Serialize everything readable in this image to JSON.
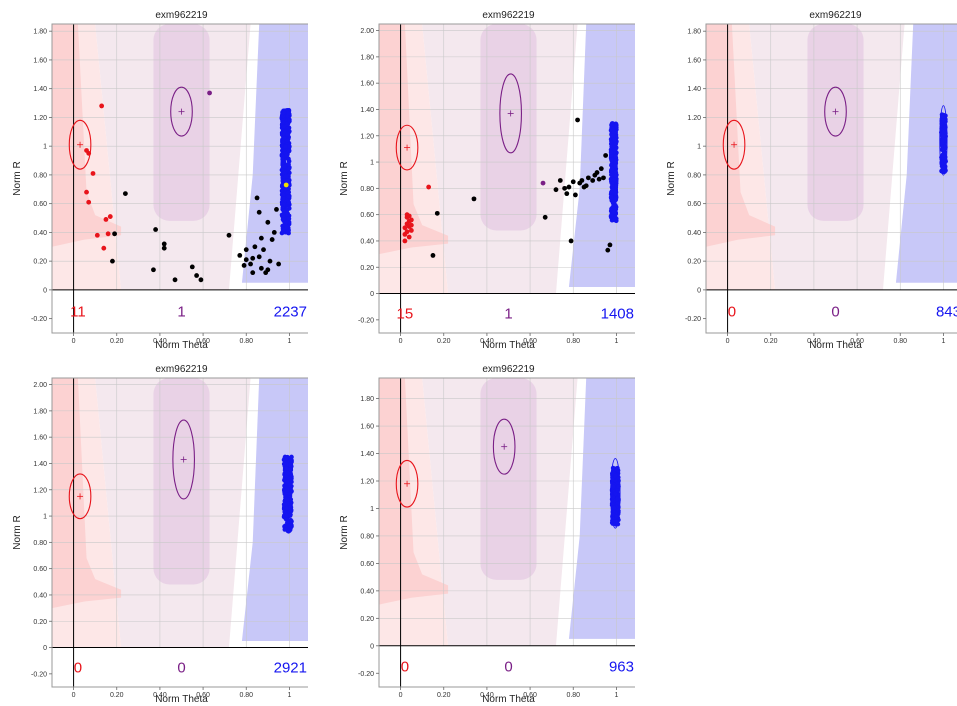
{
  "colors": {
    "red": "#e8141b",
    "purple": "#7a1f86",
    "blue": "#1515f0",
    "black": "#000000",
    "red_zone": "#fcd2d2",
    "purple_zone": "#e9d2e6",
    "blue_zone": "#c8c8f8",
    "light_zone": "#f4e8ee",
    "light_red": "#fde7e7"
  },
  "chart_data": [
    {
      "type": "scatter",
      "title": "exm962219",
      "xlabel": "Norm Theta",
      "ylabel": "Norm R",
      "xlim": [
        -0.1,
        1.1
      ],
      "ylim": [
        -0.3,
        1.85
      ],
      "ytick_max": 1.8,
      "xticks": [
        "0",
        "0.20",
        "0.40",
        "0.60",
        "0.80",
        "1"
      ],
      "yticks": [
        "-0.20",
        "0",
        "0.20",
        "0.40",
        "0.60",
        "0.80",
        "1",
        "1.20",
        "1.40",
        "1.60",
        "1.80"
      ],
      "counts": {
        "red": "11",
        "purple": "1",
        "blue": "2237"
      },
      "centroids": {
        "red": [
          0.03,
          1.01,
          0.05,
          0.17
        ],
        "purple": [
          0.5,
          1.24,
          0.05,
          0.17
        ]
      },
      "blue_cluster": {
        "x": [
          0.965,
          1.0
        ],
        "y": [
          0.38,
          1.25
        ],
        "n": 420,
        "outline": false
      },
      "series": [
        {
          "color": "red",
          "points": [
            [
              0.06,
              0.97
            ],
            [
              0.07,
              0.95
            ],
            [
              0.13,
              1.28
            ],
            [
              0.09,
              0.81
            ],
            [
              0.06,
              0.68
            ],
            [
              0.07,
              0.61
            ],
            [
              0.17,
              0.51
            ],
            [
              0.15,
              0.49
            ],
            [
              0.16,
              0.39
            ],
            [
              0.11,
              0.38
            ],
            [
              0.14,
              0.29
            ]
          ]
        },
        {
          "color": "black",
          "points": [
            [
              0.24,
              0.67
            ],
            [
              0.19,
              0.39
            ],
            [
              0.18,
              0.2
            ],
            [
              0.38,
              0.42
            ],
            [
              0.42,
              0.32
            ],
            [
              0.42,
              0.29
            ],
            [
              0.37,
              0.14
            ],
            [
              0.47,
              0.07
            ],
            [
              0.57,
              0.1
            ],
            [
              0.59,
              0.07
            ],
            [
              0.55,
              0.16
            ],
            [
              0.72,
              0.38
            ],
            [
              0.77,
              0.24
            ],
            [
              0.79,
              0.17
            ],
            [
              0.8,
              0.21
            ],
            [
              0.82,
              0.18
            ],
            [
              0.83,
              0.12
            ],
            [
              0.84,
              0.3
            ],
            [
              0.85,
              0.64
            ],
            [
              0.86,
              0.23
            ],
            [
              0.87,
              0.15
            ],
            [
              0.88,
              0.28
            ],
            [
              0.89,
              0.12
            ],
            [
              0.9,
              0.47
            ],
            [
              0.91,
              0.2
            ],
            [
              0.92,
              0.35
            ],
            [
              0.93,
              0.4
            ],
            [
              0.94,
              0.56
            ],
            [
              0.95,
              0.18
            ],
            [
              0.87,
              0.36
            ],
            [
              0.9,
              0.14
            ],
            [
              0.86,
              0.54
            ],
            [
              0.83,
              0.22
            ],
            [
              0.8,
              0.28
            ]
          ]
        },
        {
          "color": "purple",
          "points": [
            [
              0.63,
              1.37
            ]
          ]
        },
        {
          "color": "yellow",
          "points": [
            [
              0.985,
              0.73
            ]
          ]
        }
      ]
    },
    {
      "type": "scatter",
      "title": "exm962219",
      "xlabel": "Norm Theta",
      "ylabel": "Norm R",
      "xlim": [
        -0.1,
        1.1
      ],
      "ylim": [
        -0.3,
        2.05
      ],
      "ytick_max": 2.0,
      "xticks": [
        "0",
        "0.20",
        "0.40",
        "0.60",
        "0.80",
        "1"
      ],
      "yticks": [
        "-0.20",
        "0",
        "0.20",
        "0.40",
        "0.60",
        "0.80",
        "1",
        "1.20",
        "1.40",
        "1.60",
        "1.80",
        "2.00"
      ],
      "counts": {
        "red": "15",
        "purple": "1",
        "blue": "1408"
      },
      "centroids": {
        "red": [
          0.03,
          1.11,
          0.05,
          0.17
        ],
        "purple": [
          0.51,
          1.37,
          0.05,
          0.3
        ]
      },
      "blue_cluster": {
        "x": [
          0.975,
          1.0
        ],
        "y": [
          0.55,
          1.3
        ],
        "n": 320,
        "outline": false
      },
      "series": [
        {
          "color": "red",
          "points": [
            [
              0.03,
              0.58
            ],
            [
              0.04,
              0.55
            ],
            [
              0.02,
              0.5
            ],
            [
              0.05,
              0.56
            ],
            [
              0.03,
              0.47
            ],
            [
              0.04,
              0.43
            ],
            [
              0.02,
              0.4
            ],
            [
              0.05,
              0.52
            ],
            [
              0.03,
              0.6
            ],
            [
              0.13,
              0.81
            ],
            [
              0.04,
              0.59
            ],
            [
              0.02,
              0.45
            ],
            [
              0.05,
              0.48
            ],
            [
              0.03,
              0.53
            ],
            [
              0.04,
              0.51
            ]
          ]
        },
        {
          "color": "black",
          "points": [
            [
              0.17,
              0.61
            ],
            [
              0.15,
              0.29
            ],
            [
              0.34,
              0.72
            ],
            [
              0.67,
              0.58
            ],
            [
              0.72,
              0.79
            ],
            [
              0.74,
              0.86
            ],
            [
              0.76,
              0.8
            ],
            [
              0.77,
              0.76
            ],
            [
              0.78,
              0.81
            ],
            [
              0.79,
              0.4
            ],
            [
              0.8,
              0.85
            ],
            [
              0.81,
              0.75
            ],
            [
              0.82,
              1.32
            ],
            [
              0.83,
              0.84
            ],
            [
              0.84,
              0.86
            ],
            [
              0.85,
              0.81
            ],
            [
              0.86,
              0.82
            ],
            [
              0.87,
              0.88
            ],
            [
              0.89,
              0.86
            ],
            [
              0.9,
              0.9
            ],
            [
              0.91,
              0.92
            ],
            [
              0.93,
              0.95
            ],
            [
              0.94,
              0.88
            ],
            [
              0.95,
              1.05
            ],
            [
              0.97,
              0.37
            ],
            [
              0.96,
              0.33
            ],
            [
              0.92,
              0.87
            ]
          ]
        },
        {
          "color": "purple",
          "points": [
            [
              0.66,
              0.84
            ]
          ]
        }
      ]
    },
    {
      "type": "scatter",
      "title": "exm962219",
      "xlabel": "Norm Theta",
      "ylabel": "Norm R",
      "xlim": [
        -0.1,
        1.1
      ],
      "ylim": [
        -0.3,
        1.85
      ],
      "ytick_max": 1.8,
      "xticks": [
        "0",
        "0.20",
        "0.40",
        "0.60",
        "0.80",
        "1"
      ],
      "yticks": [
        "-0.20",
        "0",
        "0.20",
        "0.40",
        "0.60",
        "0.80",
        "1",
        "1.20",
        "1.40",
        "1.60",
        "1.80"
      ],
      "counts": {
        "red": "0",
        "purple": "0",
        "blue": "843"
      },
      "centroids": {
        "red": [
          0.03,
          1.01,
          0.05,
          0.17
        ],
        "purple": [
          0.5,
          1.24,
          0.05,
          0.17
        ]
      },
      "blue_cluster": {
        "x": [
          0.99,
          1.01
        ],
        "y": [
          0.82,
          1.22
        ],
        "n": 160,
        "outline": true
      },
      "series": []
    },
    {
      "type": "scatter",
      "title": "exm962219",
      "xlabel": "Norm Theta",
      "ylabel": "Norm R",
      "xlim": [
        -0.1,
        1.1
      ],
      "ylim": [
        -0.3,
        2.05
      ],
      "ytick_max": 2.0,
      "xticks": [
        "0",
        "0.20",
        "0.40",
        "0.60",
        "0.80",
        "1"
      ],
      "yticks": [
        "-0.20",
        "0",
        "0.20",
        "0.40",
        "0.60",
        "0.80",
        "1",
        "1.20",
        "1.40",
        "1.60",
        "1.80",
        "2.00"
      ],
      "counts": {
        "red": "0",
        "purple": "0",
        "blue": "2921"
      },
      "centroids": {
        "red": [
          0.03,
          1.15,
          0.05,
          0.17
        ],
        "purple": [
          0.51,
          1.43,
          0.05,
          0.3
        ]
      },
      "blue_cluster": {
        "x": [
          0.975,
          1.01
        ],
        "y": [
          0.88,
          1.45
        ],
        "n": 260,
        "outline": false
      },
      "series": []
    },
    {
      "type": "scatter",
      "title": "exm962219",
      "xlabel": "Norm Theta",
      "ylabel": "Norm R",
      "xlim": [
        -0.1,
        1.1
      ],
      "ylim": [
        -0.3,
        1.95
      ],
      "ytick_max": 1.8,
      "xticks": [
        "0",
        "0.20",
        "0.40",
        "0.60",
        "0.80",
        "1"
      ],
      "yticks": [
        "-0.20",
        "0",
        "0.20",
        "0.40",
        "0.60",
        "0.80",
        "1",
        "1.20",
        "1.40",
        "1.60",
        "1.80"
      ],
      "counts": {
        "red": "0",
        "purple": "0",
        "blue": "963"
      },
      "centroids": {
        "red": [
          0.03,
          1.18,
          0.05,
          0.17
        ],
        "purple": [
          0.48,
          1.45,
          0.05,
          0.2
        ]
      },
      "blue_cluster": {
        "x": [
          0.98,
          1.01
        ],
        "y": [
          0.88,
          1.3
        ],
        "n": 190,
        "outline": true
      },
      "series": []
    }
  ]
}
